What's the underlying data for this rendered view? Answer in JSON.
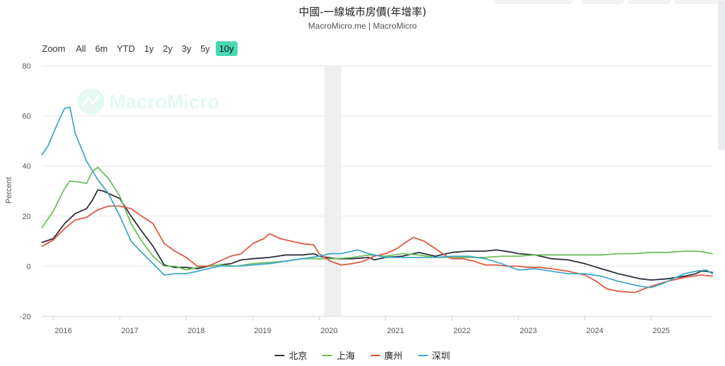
{
  "header": {
    "title": "中國-一線城市房價(年增率)",
    "subtitle": "MacroMicro.me | MacroMicro"
  },
  "watermark": {
    "text": "MacroMicro",
    "icon": "macromicro-logo-icon"
  },
  "range_selector": {
    "zoom_label": "Zoom",
    "buttons": [
      "All",
      "6m",
      "YTD",
      "1y",
      "2y",
      "3y",
      "5y",
      "10y"
    ],
    "active": "10y",
    "active_color": "#48d8b4"
  },
  "chart_data": {
    "type": "line",
    "title": "中國-一線城市房價(年增率)",
    "ylabel": "Percent",
    "xlabel": "",
    "ylim": [
      -20,
      80
    ],
    "yticks": [
      -20,
      0,
      20,
      40,
      60,
      80
    ],
    "xlim": [
      2015.83,
      2025.92
    ],
    "xticks": [
      "2016",
      "2017",
      "2018",
      "2019",
      "2020",
      "2021",
      "2022",
      "2023",
      "2024",
      "2025"
    ],
    "grid": true,
    "shaded_band": [
      2020.08,
      2020.33
    ],
    "legend_position": "bottom",
    "series": [
      {
        "name": "北京",
        "color": "#2b2f3a",
        "x": [
          2015.83,
          2016.0,
          2016.17,
          2016.33,
          2016.5,
          2016.58,
          2016.67,
          2016.75,
          2016.92,
          2017.0,
          2017.17,
          2017.33,
          2017.5,
          2017.67,
          2017.83,
          2018.0,
          2018.17,
          2018.33,
          2018.5,
          2018.67,
          2018.83,
          2019.0,
          2019.25,
          2019.5,
          2019.75,
          2019.92,
          2020.0,
          2020.25,
          2020.5,
          2020.75,
          2020.83,
          2021.0,
          2021.25,
          2021.5,
          2021.75,
          2022.0,
          2022.25,
          2022.5,
          2022.67,
          2022.92,
          2023.0,
          2023.25,
          2023.5,
          2023.75,
          2024.0,
          2024.25,
          2024.5,
          2024.67,
          2024.83,
          2025.0,
          2025.25,
          2025.5,
          2025.67,
          2025.75,
          2025.83,
          2025.92
        ],
        "y": [
          9.5,
          11,
          17,
          21,
          23,
          26,
          30.5,
          30,
          28,
          27,
          20,
          14,
          8,
          0.5,
          -0.5,
          -0.5,
          -1,
          0,
          0.5,
          1,
          2.5,
          3,
          3.5,
          4.5,
          4.5,
          5,
          4,
          3,
          3,
          3.5,
          2.5,
          3.5,
          4,
          5.5,
          4,
          5.5,
          6,
          6,
          6.5,
          5.5,
          5,
          4.5,
          3,
          2.5,
          1,
          -1,
          -3,
          -4,
          -5,
          -5.5,
          -5,
          -4,
          -3,
          -2,
          -2,
          -2.5
        ]
      },
      {
        "name": "上海",
        "color": "#6dbf5b",
        "x": [
          2015.83,
          2016.0,
          2016.17,
          2016.25,
          2016.42,
          2016.5,
          2016.58,
          2016.67,
          2016.83,
          2017.0,
          2017.17,
          2017.33,
          2017.5,
          2017.67,
          2017.83,
          2018.0,
          2018.25,
          2018.5,
          2018.75,
          2019.0,
          2019.25,
          2019.5,
          2019.75,
          2020.0,
          2020.25,
          2020.5,
          2020.75,
          2021.0,
          2021.25,
          2021.5,
          2021.75,
          2022.0,
          2022.25,
          2022.5,
          2022.75,
          2023.0,
          2023.25,
          2023.5,
          2023.75,
          2024.0,
          2024.25,
          2024.5,
          2024.75,
          2025.0,
          2025.25,
          2025.5,
          2025.67,
          2025.83,
          2025.92
        ],
        "y": [
          15.5,
          22,
          31,
          34,
          33.5,
          33,
          37.5,
          39.5,
          35,
          28,
          17,
          10,
          4,
          0,
          0,
          -1.5,
          0,
          0.5,
          0,
          1,
          1.5,
          2,
          3,
          3,
          3,
          3.5,
          4.5,
          4,
          5,
          4.5,
          3.5,
          3.5,
          3.5,
          3.5,
          4,
          4,
          4.5,
          4.5,
          4.5,
          4.5,
          4.5,
          5,
          5,
          5.5,
          5.5,
          6,
          6,
          5.5,
          5
        ]
      },
      {
        "name": "廣州",
        "color": "#e0583f",
        "x": [
          2015.83,
          2016.0,
          2016.17,
          2016.33,
          2016.5,
          2016.67,
          2016.83,
          2017.0,
          2017.17,
          2017.33,
          2017.5,
          2017.67,
          2017.83,
          2018.0,
          2018.17,
          2018.33,
          2018.5,
          2018.67,
          2018.83,
          2019.0,
          2019.17,
          2019.25,
          2019.42,
          2019.58,
          2019.75,
          2019.92,
          2020.0,
          2020.17,
          2020.33,
          2020.5,
          2020.67,
          2020.83,
          2021.0,
          2021.17,
          2021.33,
          2021.42,
          2021.58,
          2021.75,
          2021.92,
          2022.0,
          2022.17,
          2022.33,
          2022.5,
          2022.67,
          2022.83,
          2023.0,
          2023.17,
          2023.33,
          2023.5,
          2023.75,
          2024.0,
          2024.17,
          2024.33,
          2024.5,
          2024.75,
          2025.0,
          2025.25,
          2025.5,
          2025.75,
          2025.92
        ],
        "y": [
          8,
          10.5,
          15,
          18.5,
          19.5,
          22.5,
          24,
          24,
          23,
          20,
          17,
          9,
          6,
          3.5,
          0,
          0,
          2,
          4,
          5,
          9,
          11,
          13,
          11,
          10,
          9,
          8.5,
          5,
          2,
          0.5,
          1,
          2,
          4,
          5,
          7,
          10,
          11.5,
          10,
          7,
          4,
          3,
          3,
          2,
          0.5,
          0.5,
          0,
          0,
          -0.5,
          -0.5,
          -1,
          -2,
          -3.5,
          -6,
          -9,
          -10,
          -10.5,
          -8,
          -6,
          -4.5,
          -3.5,
          -4
        ]
      },
      {
        "name": "深圳",
        "color": "#41a8cc",
        "x": [
          2015.83,
          2015.92,
          2016.08,
          2016.17,
          2016.25,
          2016.33,
          2016.5,
          2016.67,
          2016.83,
          2017.0,
          2017.17,
          2017.33,
          2017.5,
          2017.67,
          2017.83,
          2018.0,
          2018.17,
          2018.33,
          2018.5,
          2018.75,
          2019.0,
          2019.25,
          2019.5,
          2019.75,
          2020.0,
          2020.17,
          2020.33,
          2020.5,
          2020.58,
          2020.75,
          2021.0,
          2021.25,
          2021.5,
          2021.75,
          2022.0,
          2022.25,
          2022.5,
          2022.75,
          2023.0,
          2023.25,
          2023.5,
          2023.75,
          2024.0,
          2024.25,
          2024.5,
          2024.67,
          2024.83,
          2025.0,
          2025.17,
          2025.33,
          2025.5,
          2025.67,
          2025.83,
          2025.92
        ],
        "y": [
          44.5,
          48,
          58,
          63,
          63.5,
          53,
          42,
          34.5,
          29,
          20,
          10,
          5.5,
          1,
          -3.5,
          -3,
          -3,
          -2,
          -1,
          0,
          0,
          0.5,
          1,
          2,
          3,
          4,
          5,
          5,
          6,
          6.5,
          5,
          3.5,
          3.5,
          3.5,
          3.5,
          4,
          4,
          3,
          1,
          -1.5,
          -1,
          -2,
          -3,
          -3,
          -4,
          -6,
          -7,
          -8,
          -8.5,
          -7,
          -5,
          -3,
          -2,
          -1.5,
          -3
        ]
      }
    ]
  }
}
